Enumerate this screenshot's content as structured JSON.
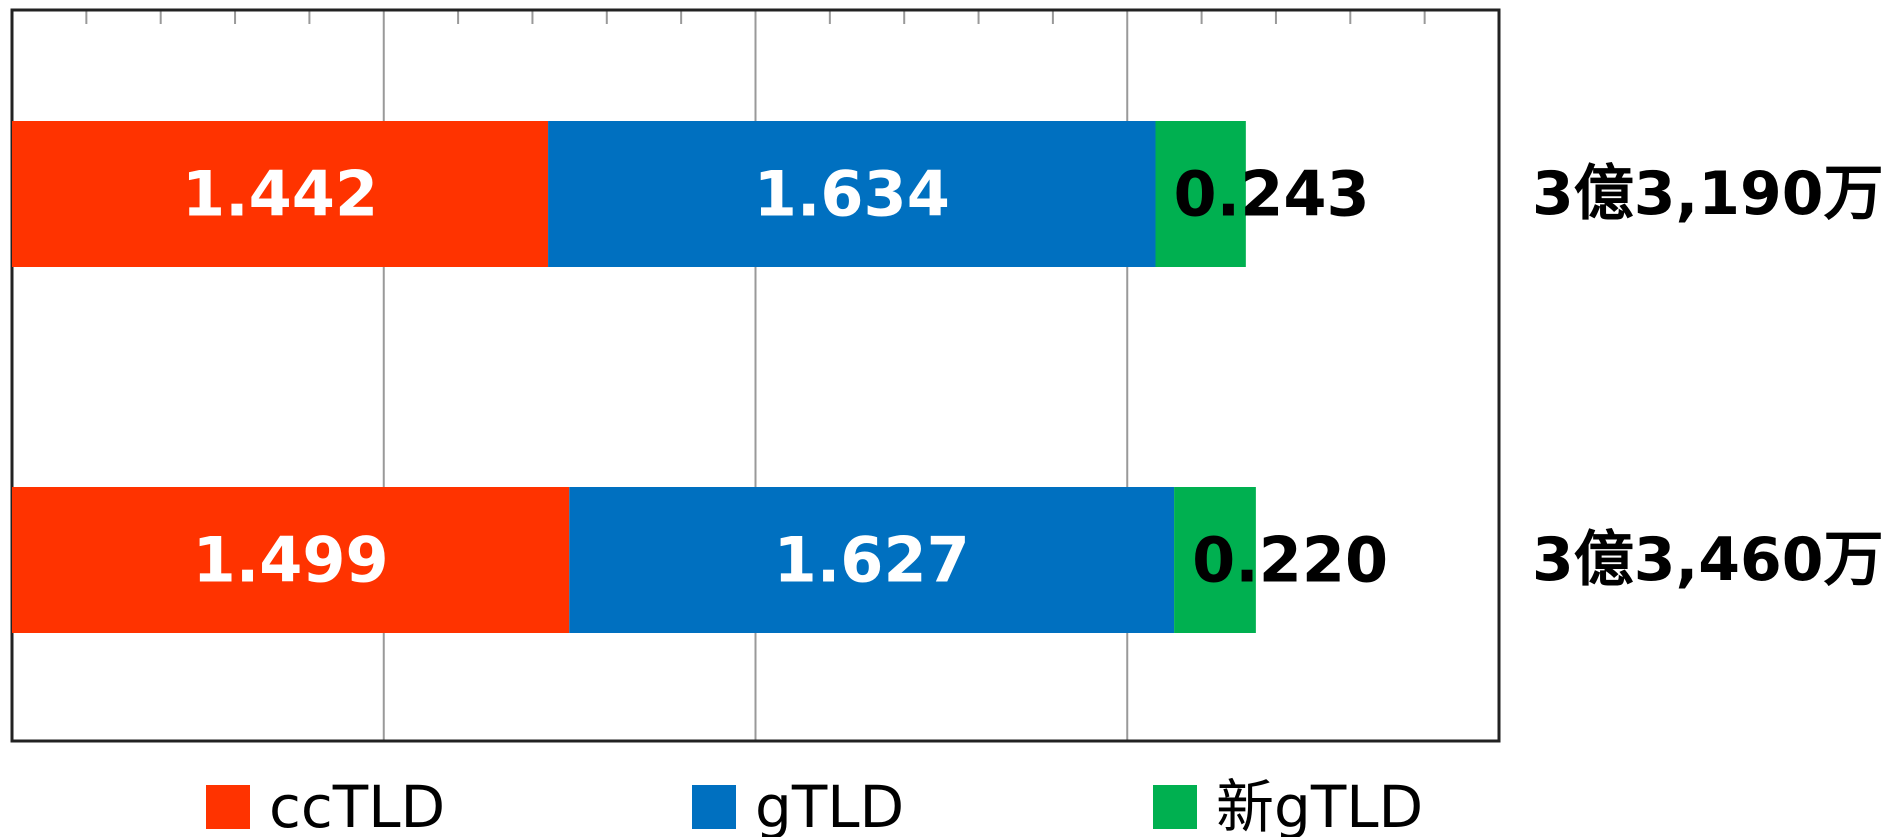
{
  "chart_data": {
    "type": "stacked-bar-horizontal",
    "categories": [
      null,
      null
    ],
    "series": [
      {
        "name": "ccTLD",
        "color": "#ff3300",
        "values": [
          1.442,
          1.499
        ],
        "value_labels": [
          "1.442",
          "1.499"
        ],
        "label_color": "#ffffff"
      },
      {
        "name": "gTLD",
        "color": "#0070c0",
        "values": [
          1.634,
          1.627
        ],
        "value_labels": [
          "1.634",
          "1.627"
        ],
        "label_color": "#ffffff"
      },
      {
        "name": "新gTLD",
        "color": "#00b050",
        "values": [
          0.243,
          0.22
        ],
        "value_labels": [
          "0.243",
          "0.220"
        ],
        "label_color": "#000000"
      }
    ],
    "total_labels": [
      "3億3,190万",
      "3億3,460万"
    ],
    "xlim": [
      0,
      4
    ],
    "xticks": [
      0,
      1,
      2,
      3,
      4
    ],
    "xminorticks": [
      0.2,
      0.4,
      0.6,
      0.8,
      1.2,
      1.4,
      1.6,
      1.8,
      2.2,
      2.4,
      2.6,
      2.8,
      3.2,
      3.4,
      3.6,
      3.8
    ],
    "grid": true,
    "legend": "bottom"
  }
}
